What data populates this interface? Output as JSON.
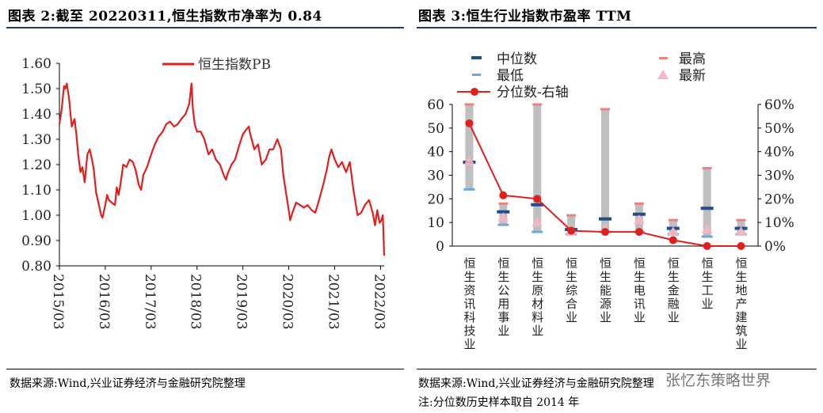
{
  "left": {
    "title": "图表 2:截至 20220311,恒生指数市净率为 0.84",
    "source": "数据来源:Wind,兴业证券经济与金融研究院整理"
  },
  "right": {
    "title": "图表 3:恒生行业指数市盈率 TTM",
    "source": "数据来源:Wind,兴业证券经济与金融研究院整理",
    "note": "注:分位数历史样本取自 2014 年"
  },
  "watermark": "张忆东策略世界",
  "colors": {
    "line": "#e0201c",
    "median": "#1f4e8c",
    "low": "#6fa8e0",
    "high": "#f08080",
    "latest": "#f7b6c2",
    "range": "#bfbfbf"
  },
  "chart_data": [
    {
      "type": "line",
      "title": "",
      "legend": [
        "恒生指数PB"
      ],
      "legend_position": "top-center",
      "xlabel": "",
      "ylabel": "",
      "ylim": [
        0.8,
        1.6
      ],
      "yticks": [
        "1.60",
        "1.50",
        "1.40",
        "1.30",
        "1.20",
        "1.10",
        "1.00",
        "0.90",
        "0.80"
      ],
      "xticks": [
        "2015/03",
        "2016/03",
        "2017/03",
        "2018/03",
        "2019/03",
        "2020/03",
        "2021/03",
        "2022/03"
      ],
      "xrange": [
        2015.17,
        2022.25
      ],
      "series": [
        {
          "name": "恒生指数PB",
          "x": [
            2015.17,
            2015.22,
            2015.27,
            2015.3,
            2015.33,
            2015.38,
            2015.44,
            2015.5,
            2015.54,
            2015.58,
            2015.63,
            2015.67,
            2015.72,
            2015.78,
            2015.83,
            2015.88,
            2015.92,
            2015.97,
            2016.02,
            2016.08,
            2016.11,
            2016.17,
            2016.21,
            2016.25,
            2016.31,
            2016.38,
            2016.42,
            2016.46,
            2016.5,
            2016.56,
            2016.63,
            2016.7,
            2016.77,
            2016.83,
            2016.9,
            2016.95,
            2017.0,
            2017.08,
            2017.17,
            2017.25,
            2017.33,
            2017.42,
            2017.5,
            2017.58,
            2017.67,
            2017.75,
            2017.83,
            2017.92,
            2018.0,
            2018.05,
            2018.08,
            2018.12,
            2018.17,
            2018.25,
            2018.33,
            2018.42,
            2018.5,
            2018.58,
            2018.67,
            2018.75,
            2018.8,
            2018.83,
            2018.92,
            2019.0,
            2019.08,
            2019.17,
            2019.25,
            2019.3,
            2019.33,
            2019.42,
            2019.5,
            2019.58,
            2019.67,
            2019.75,
            2019.83,
            2019.92,
            2020.0,
            2020.05,
            2020.1,
            2020.17,
            2020.2,
            2020.25,
            2020.33,
            2020.42,
            2020.5,
            2020.58,
            2020.67,
            2020.75,
            2020.83,
            2020.92,
            2021.0,
            2021.05,
            2021.1,
            2021.17,
            2021.25,
            2021.33,
            2021.42,
            2021.5,
            2021.58,
            2021.67,
            2021.75,
            2021.83,
            2021.92,
            2022.0,
            2022.05,
            2022.1,
            2022.15,
            2022.19,
            2022.22,
            2022.25
          ],
          "y": [
            1.36,
            1.42,
            1.51,
            1.5,
            1.52,
            1.46,
            1.35,
            1.38,
            1.32,
            1.24,
            1.17,
            1.19,
            1.13,
            1.24,
            1.26,
            1.22,
            1.18,
            1.09,
            1.05,
            1.0,
            0.99,
            1.04,
            1.08,
            1.06,
            1.05,
            1.04,
            1.11,
            1.08,
            1.12,
            1.2,
            1.19,
            1.22,
            1.21,
            1.18,
            1.12,
            1.1,
            1.16,
            1.19,
            1.24,
            1.28,
            1.31,
            1.33,
            1.36,
            1.37,
            1.35,
            1.36,
            1.38,
            1.4,
            1.44,
            1.52,
            1.42,
            1.36,
            1.33,
            1.33,
            1.3,
            1.24,
            1.26,
            1.22,
            1.2,
            1.16,
            1.14,
            1.16,
            1.2,
            1.22,
            1.27,
            1.32,
            1.34,
            1.35,
            1.32,
            1.26,
            1.28,
            1.2,
            1.22,
            1.26,
            1.26,
            1.3,
            1.26,
            1.16,
            1.1,
            1.02,
            0.98,
            1.01,
            1.05,
            1.04,
            1.03,
            1.04,
            1.02,
            1.01,
            1.06,
            1.12,
            1.18,
            1.23,
            1.26,
            1.22,
            1.19,
            1.21,
            1.17,
            1.21,
            1.1,
            1.0,
            1.01,
            1.04,
            1.06,
            1.01,
            0.96,
            1.02,
            0.97,
            0.98,
            1.0,
            0.84
          ]
        }
      ]
    },
    {
      "type": "bar",
      "title": "",
      "categories": [
        "恒生资讯科技业",
        "恒生公用事业",
        "恒生原材料业",
        "恒生综合业",
        "恒生能源业",
        "恒生电讯业",
        "恒生金融业",
        "恒生工业",
        "恒生地产建筑业"
      ],
      "ylim": [
        0,
        60
      ],
      "yticks": [
        "60",
        "50",
        "40",
        "30",
        "20",
        "10",
        "0"
      ],
      "y2lim": [
        0,
        60
      ],
      "y2ticks": [
        "60%",
        "50%",
        "40%",
        "30%",
        "20%",
        "10%",
        "0%"
      ],
      "legend": [
        "中位数",
        "最高",
        "最低",
        "最新",
        "分位数-右轴"
      ],
      "legend_position": "top",
      "series": [
        {
          "name": "最低",
          "values": [
            24,
            9,
            6,
            5,
            6,
            6,
            5,
            4,
            5
          ]
        },
        {
          "name": "最高",
          "values": [
            60,
            18,
            60,
            13,
            58,
            18,
            11,
            33,
            11
          ]
        },
        {
          "name": "中位数",
          "values": [
            35.5,
            14.5,
            17.5,
            7,
            11.5,
            13.5,
            7.5,
            16,
            7.5
          ]
        },
        {
          "name": "最新",
          "values": [
            36,
            12,
            10,
            6,
            7,
            11,
            6,
            7,
            6
          ]
        },
        {
          "name": "分位数-右轴",
          "axis": "right",
          "values": [
            52,
            21.5,
            20,
            6.5,
            6,
            6,
            2.5,
            0,
            0
          ]
        }
      ]
    }
  ]
}
